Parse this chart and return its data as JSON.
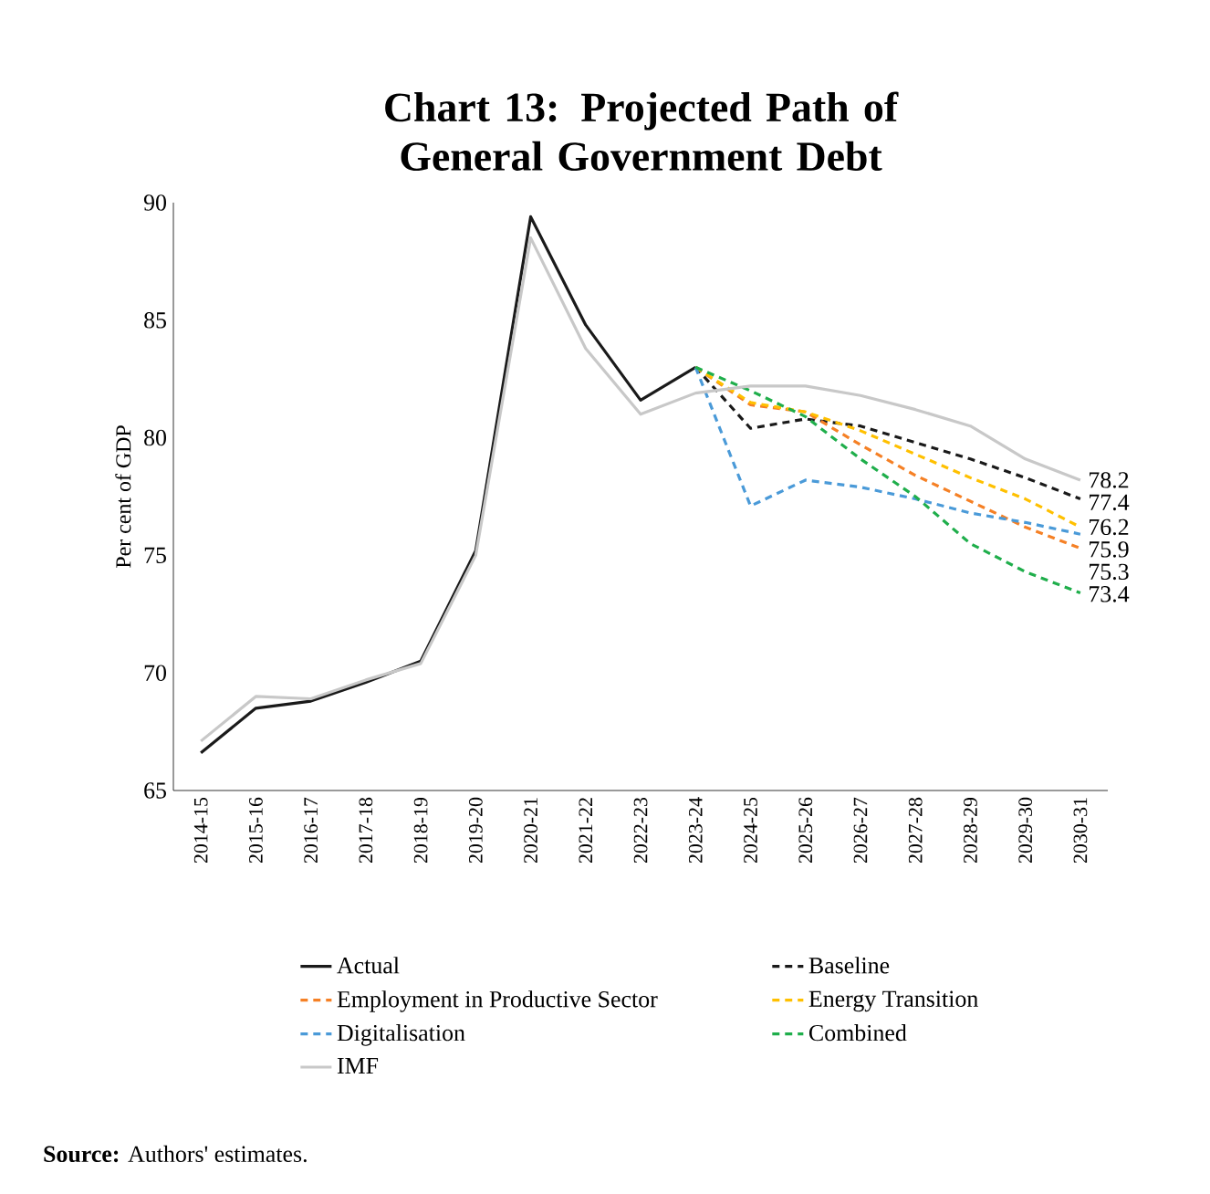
{
  "chart_data": {
    "type": "line",
    "title": "Chart 13: Projected Path of General Government Debt",
    "ylabel": "Per cent of GDP",
    "categories": [
      "2014-15",
      "2015-16",
      "2016-17",
      "2017-18",
      "2018-19",
      "2019-20",
      "2020-21",
      "2021-22",
      "2022-23",
      "2023-24",
      "2024-25",
      "2025-26",
      "2026-27",
      "2027-28",
      "2028-29",
      "2029-30",
      "2030-31"
    ],
    "ylim": [
      65,
      90
    ],
    "yticks": [
      65,
      70,
      75,
      80,
      85,
      90
    ],
    "legend": "bottom",
    "marker": "none",
    "annotations": [
      "**Source:** Authors' estimates."
    ],
    "series": [
      {
        "name": "Actual",
        "color": "#1a1a1a",
        "line_style": "solid",
        "values": [
          66.6,
          68.5,
          68.8,
          69.6,
          70.5,
          75.2,
          89.4,
          84.8,
          81.6,
          83.0,
          null,
          null,
          null,
          null,
          null,
          null,
          null
        ]
      },
      {
        "name": "Baseline",
        "color": "#1a1a1a",
        "line_style": "dashed",
        "values": [
          null,
          null,
          null,
          null,
          null,
          null,
          null,
          null,
          null,
          83.0,
          80.4,
          80.8,
          80.5,
          79.8,
          79.1,
          78.3,
          77.4
        ],
        "value_labels": [
          null,
          null,
          null,
          null,
          null,
          null,
          null,
          null,
          null,
          null,
          null,
          null,
          null,
          null,
          null,
          null,
          "77.4"
        ]
      },
      {
        "name": "Employment in Productive Sector",
        "color": "#f58025",
        "line_style": "dashed",
        "values": [
          null,
          null,
          null,
          null,
          null,
          null,
          null,
          null,
          null,
          83.0,
          81.4,
          81.1,
          79.7,
          78.4,
          77.3,
          76.2,
          75.3
        ],
        "value_labels": [
          null,
          null,
          null,
          null,
          null,
          null,
          null,
          null,
          null,
          null,
          null,
          null,
          null,
          null,
          null,
          null,
          "75.3"
        ]
      },
      {
        "name": "Energy Transition",
        "color": "#ffc000",
        "line_style": "dashed",
        "values": [
          null,
          null,
          null,
          null,
          null,
          null,
          null,
          null,
          null,
          83.0,
          81.5,
          81.1,
          80.3,
          79.3,
          78.3,
          77.4,
          76.2
        ],
        "value_labels": [
          null,
          null,
          null,
          null,
          null,
          null,
          null,
          null,
          null,
          null,
          null,
          null,
          null,
          null,
          null,
          null,
          "76.2"
        ]
      },
      {
        "name": "Digitalisation",
        "color": "#4a9ad8",
        "line_style": "dashed",
        "values": [
          null,
          null,
          null,
          null,
          null,
          null,
          null,
          null,
          null,
          83.0,
          77.1,
          78.2,
          77.9,
          77.4,
          76.8,
          76.4,
          75.9
        ],
        "value_labels": [
          null,
          null,
          null,
          null,
          null,
          null,
          null,
          null,
          null,
          null,
          null,
          null,
          null,
          null,
          null,
          null,
          "75.9"
        ]
      },
      {
        "name": "Combined",
        "color": "#1fae4b",
        "line_style": "dashed",
        "values": [
          null,
          null,
          null,
          null,
          null,
          null,
          null,
          null,
          null,
          83.0,
          82.0,
          80.9,
          79.1,
          77.5,
          75.5,
          74.3,
          73.4
        ],
        "value_labels": [
          null,
          null,
          null,
          null,
          null,
          null,
          null,
          null,
          null,
          null,
          null,
          null,
          null,
          null,
          null,
          null,
          "73.4"
        ]
      },
      {
        "name": "IMF",
        "color": "#c8c8c8",
        "line_style": "solid",
        "values": [
          67.1,
          69.0,
          68.9,
          69.7,
          70.4,
          75.0,
          88.5,
          83.8,
          81.0,
          81.9,
          82.2,
          82.2,
          81.8,
          81.2,
          80.5,
          79.1,
          78.2
        ],
        "value_labels": [
          null,
          null,
          null,
          null,
          null,
          null,
          null,
          null,
          null,
          null,
          null,
          null,
          null,
          null,
          null,
          null,
          "78.2"
        ]
      }
    ]
  }
}
